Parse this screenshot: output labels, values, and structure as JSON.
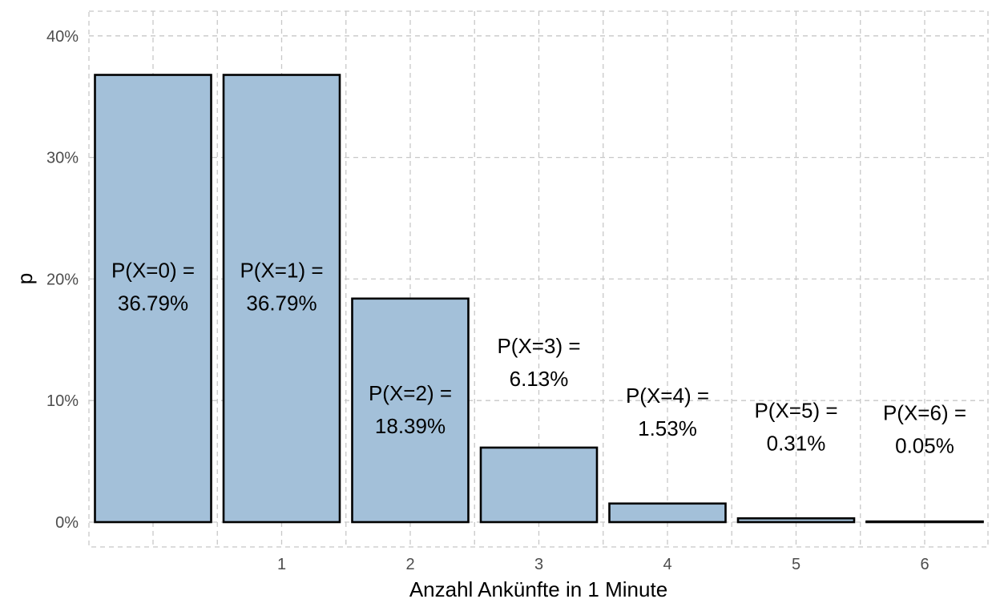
{
  "chart_data": {
    "type": "bar",
    "title": "",
    "xlabel": "Anzahl Ankünfte in 1 Minute",
    "ylabel": "p",
    "ylim": [
      0,
      0.4
    ],
    "y_ticks": [
      0,
      0.1,
      0.2,
      0.3,
      0.4
    ],
    "y_tick_labels": [
      "0%",
      "10%",
      "20%",
      "30%",
      "40%"
    ],
    "grid": true,
    "x": [
      0,
      1,
      2,
      3,
      4,
      5,
      6
    ],
    "x_tick_labels": [
      "",
      "1",
      "2",
      "3",
      "4",
      "5",
      "6"
    ],
    "values": [
      0.3679,
      0.3679,
      0.1839,
      0.0613,
      0.0153,
      0.0031,
      0.0005
    ],
    "label_positions": [
      0.1945,
      0.1945,
      0.0935,
      0.1325,
      0.0915,
      0.0795,
      0.0775
    ],
    "labels": [
      {
        "line1": "P(X=0) =",
        "line2": "36.79%"
      },
      {
        "line1": "P(X=1) =",
        "line2": "36.79%"
      },
      {
        "line1": "P(X=2) =",
        "line2": "18.39%"
      },
      {
        "line1": "P(X=3) =",
        "line2": "6.13%"
      },
      {
        "line1": "P(X=4) =",
        "line2": "1.53%"
      },
      {
        "line1": "P(X=5) =",
        "line2": "0.31%"
      },
      {
        "line1": "P(X=6) =",
        "line2": "0.05%"
      }
    ],
    "colors": {
      "bar_fill": "#a3c0d9",
      "bar_stroke": "#000000",
      "grid": "#c8c8c8"
    }
  }
}
